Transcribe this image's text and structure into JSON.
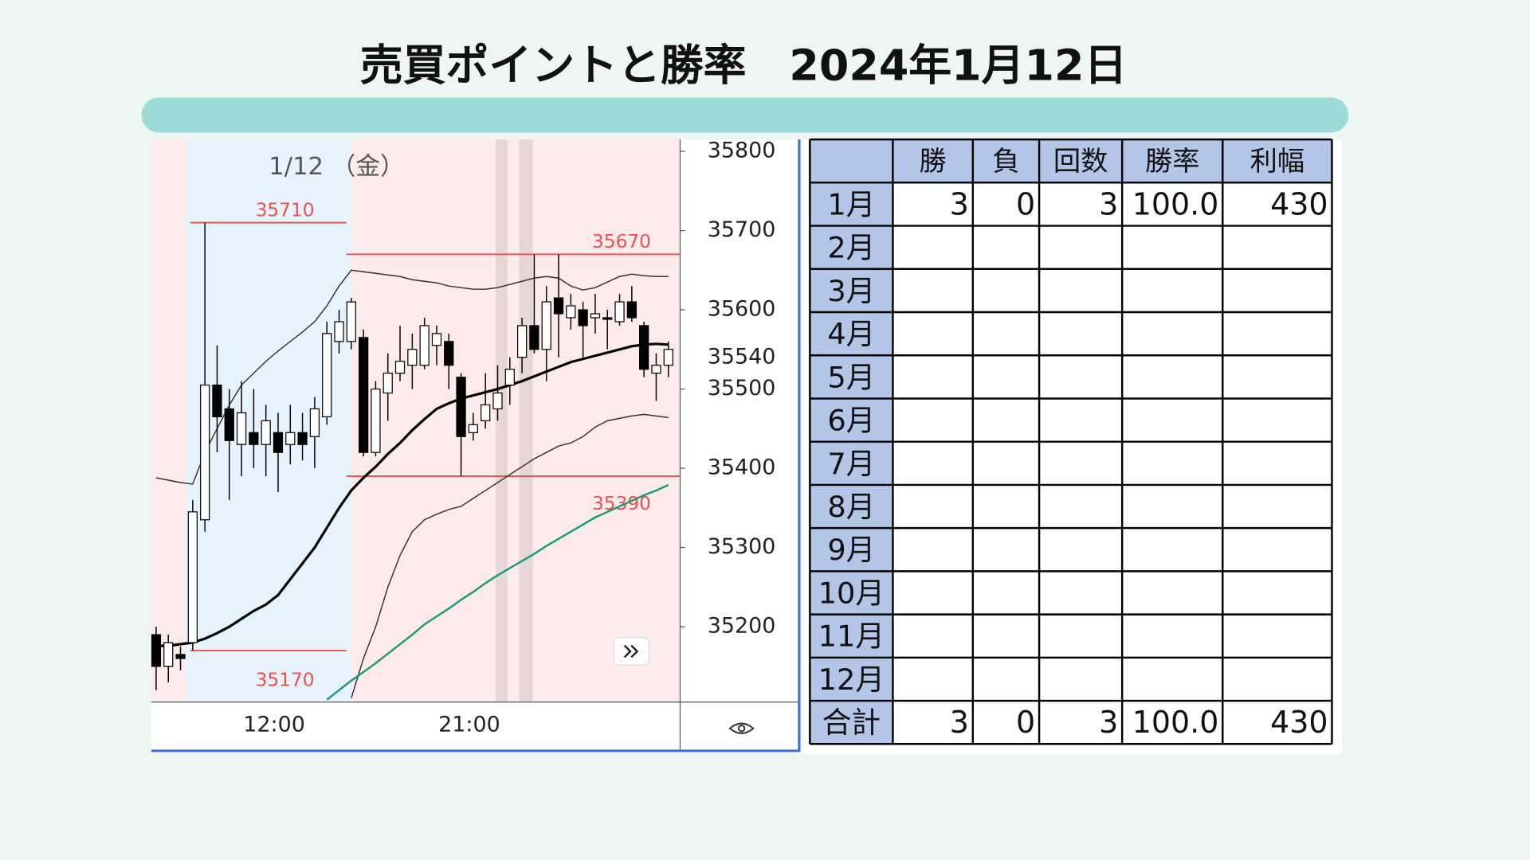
{
  "title": "売買ポイントと勝率　2024年1月12日",
  "chart_data": {
    "type": "candlestick",
    "date_label": "1/12 （金）",
    "categories": [
      null,
      null,
      null,
      null,
      null,
      null,
      null,
      null,
      null,
      null,
      "12:00",
      null,
      null,
      null,
      null,
      null,
      null,
      null,
      null,
      null,
      null,
      null,
      null,
      null,
      null,
      null,
      "21:00",
      null,
      null,
      null,
      null,
      null,
      null,
      null,
      null,
      null,
      null,
      null,
      null,
      null,
      null,
      null,
      null
    ],
    "open": [
      35190,
      35150,
      35165,
      35180,
      35335,
      35505,
      35475,
      35430,
      35445,
      35430,
      35445,
      35430,
      35445,
      35440,
      35465,
      35560,
      35560,
      35565,
      35420,
      35495,
      35520,
      35530,
      35530,
      35555,
      35560,
      35515,
      35445,
      35460,
      35475,
      35505,
      35540,
      35580,
      35550,
      35615,
      35590,
      35600,
      35590,
      35590,
      35585,
      35610,
      35580,
      35520,
      35530
    ],
    "high": [
      35200,
      35190,
      35175,
      35360,
      35710,
      35555,
      35500,
      35510,
      35500,
      35480,
      35470,
      35480,
      35470,
      35490,
      35585,
      35600,
      35615,
      35575,
      35510,
      35545,
      35580,
      35570,
      35590,
      35580,
      35570,
      35520,
      35470,
      35520,
      35530,
      35540,
      35590,
      35670,
      35630,
      35670,
      35620,
      35610,
      35620,
      35600,
      35620,
      35630,
      35585,
      35545,
      35560
    ],
    "low": [
      35120,
      35130,
      35145,
      35170,
      35320,
      35420,
      35360,
      35390,
      35400,
      35390,
      35370,
      35405,
      35410,
      35400,
      35455,
      35545,
      35550,
      35415,
      35415,
      35460,
      35510,
      35500,
      35525,
      35530,
      35500,
      35390,
      35435,
      35450,
      35460,
      35480,
      35520,
      35545,
      35510,
      35540,
      35575,
      35540,
      35570,
      35550,
      35580,
      35585,
      35515,
      35485,
      35515
    ],
    "close": [
      35150,
      35180,
      35160,
      35345,
      35505,
      35465,
      35435,
      35470,
      35430,
      35460,
      35420,
      35445,
      35430,
      35475,
      35570,
      35585,
      35610,
      35420,
      35500,
      35520,
      35535,
      35550,
      35580,
      35570,
      35530,
      35440,
      35455,
      35480,
      35495,
      35525,
      35580,
      35550,
      35610,
      35595,
      35605,
      35580,
      35595,
      35588,
      35610,
      35590,
      35525,
      35530,
      35550
    ],
    "series": [
      {
        "color": "#333333",
        "width": 1.2,
        "values": [
          35388,
          35385,
          35382,
          35380,
          35420,
          35450,
          35480,
          35505,
          35520,
          35535,
          35548,
          35560,
          35572,
          35585,
          35605,
          35630,
          35650,
          35648,
          35646,
          35644,
          35642,
          35638,
          35636,
          35634,
          35630,
          35628,
          35626,
          35626,
          35628,
          35632,
          35636,
          35640,
          35642,
          35640,
          35630,
          35625,
          35628,
          35635,
          35642,
          35645,
          35643,
          35642,
          35642
        ]
      },
      {
        "color": "#000000",
        "width": 2.6,
        "values": [
          35176,
          35176,
          35178,
          35180,
          35185,
          35192,
          35200,
          35210,
          35220,
          35228,
          35240,
          35260,
          35280,
          35300,
          35325,
          35350,
          35372,
          35388,
          35402,
          35418,
          35432,
          35448,
          35462,
          35475,
          35482,
          35488,
          35492,
          35496,
          35500,
          35505,
          35510,
          35516,
          35522,
          35528,
          35534,
          35538,
          35542,
          35546,
          35550,
          35554,
          35556,
          35557,
          35556
        ]
      },
      {
        "color": "#333333",
        "width": 1.2,
        "values": [
          null,
          null,
          null,
          null,
          null,
          null,
          null,
          null,
          null,
          null,
          null,
          null,
          null,
          null,
          null,
          null,
          35110,
          35160,
          35200,
          35250,
          35290,
          35320,
          35335,
          35342,
          35348,
          35352,
          35362,
          35372,
          35382,
          35392,
          35402,
          35412,
          35420,
          35428,
          35432,
          35440,
          35452,
          35460,
          35463,
          35466,
          35468,
          35466,
          35464
        ]
      },
      {
        "color": "#1a9a7a",
        "width": 2,
        "values": [
          null,
          null,
          null,
          null,
          null,
          null,
          null,
          null,
          null,
          null,
          null,
          null,
          null,
          null,
          35108,
          35120,
          35132,
          35143,
          35154,
          35166,
          35178,
          35190,
          35203,
          35213,
          35223,
          35234,
          35244,
          35255,
          35265,
          35274,
          35283,
          35292,
          35302,
          35311,
          35320,
          35329,
          35338,
          35345,
          35352,
          35359,
          35366,
          35372,
          35379
        ]
      }
    ],
    "levels": [
      35710,
      35670,
      35390,
      35170
    ],
    "level_color": "#f05050",
    "last_price": 35540,
    "ylim": [
      35105,
      35815
    ],
    "yticks": [
      35200,
      35300,
      35400,
      35500,
      35600,
      35700,
      35800
    ]
  },
  "table": {
    "header": [
      null,
      "勝",
      "負",
      "回数",
      "勝率",
      "利幅"
    ],
    "rows": [
      [
        "1月",
        3,
        0,
        3,
        "100.0",
        430
      ],
      [
        "2月",
        null,
        null,
        null,
        null,
        null
      ],
      [
        "3月",
        null,
        null,
        null,
        null,
        null
      ],
      [
        "4月",
        null,
        null,
        null,
        null,
        null
      ],
      [
        "5月",
        null,
        null,
        null,
        null,
        null
      ],
      [
        "6月",
        null,
        null,
        null,
        null,
        null
      ],
      [
        "7月",
        null,
        null,
        null,
        null,
        null
      ],
      [
        "8月",
        null,
        null,
        null,
        null,
        null
      ],
      [
        "9月",
        null,
        null,
        null,
        null,
        null
      ],
      [
        "10月",
        null,
        null,
        null,
        null,
        null
      ],
      [
        "11月",
        null,
        null,
        null,
        null,
        null
      ],
      [
        "12月",
        null,
        null,
        null,
        null,
        null
      ],
      [
        "合計",
        3,
        0,
        3,
        "100.0",
        430
      ]
    ]
  }
}
